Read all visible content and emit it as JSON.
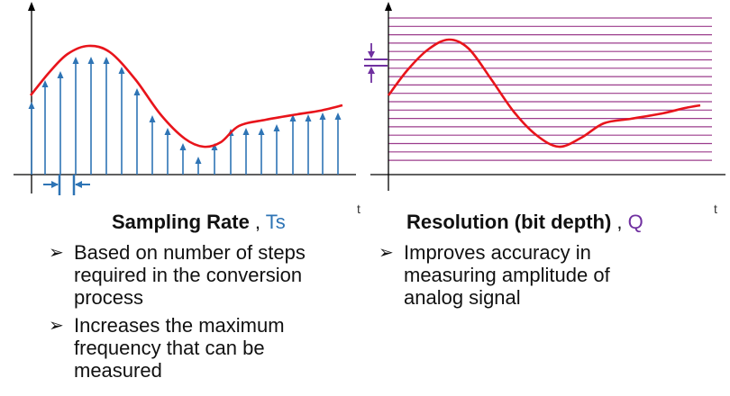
{
  "left_panel": {
    "axis_label": "t",
    "heading": "Sampling Rate",
    "symbol": "Ts",
    "symbol_color": "#2E74B5",
    "bullets": [
      "Based on number of steps required in the conversion process",
      "Increases the maximum frequency that can be measured"
    ]
  },
  "right_panel": {
    "axis_label": "t",
    "heading": "Resolution (bit depth)",
    "symbol": "Q",
    "symbol_color": "#7030A0",
    "bullets": [
      "Improves accuracy in measuring amplitude of analog signal"
    ]
  },
  "colors": {
    "signal": "#E8141B",
    "sample_arrow": "#2E74B5",
    "level_line": "#9B3C8C",
    "axis": "#000000"
  },
  "bullet_icon": "right-arrow-bullet-icon"
}
